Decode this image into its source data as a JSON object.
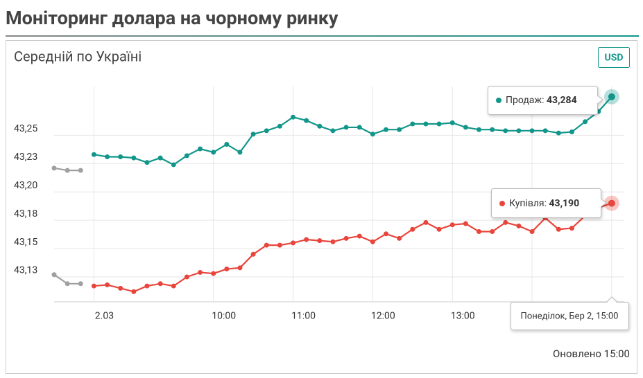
{
  "header": {
    "title": "Моніторинг долара на чорному ринку"
  },
  "card": {
    "subtitle": "Середній по Україні",
    "currency_button": "USD",
    "footer": "Оновлено 15:00"
  },
  "chart_data": {
    "type": "line",
    "categories": [
      null,
      null,
      null,
      "2.03",
      null,
      null,
      null,
      null,
      null,
      null,
      null,
      null,
      "10:00",
      null,
      null,
      null,
      null,
      null,
      "11:00",
      null,
      null,
      null,
      null,
      null,
      "12:00",
      null,
      null,
      null,
      null,
      null,
      "13:00",
      null,
      null,
      null,
      null,
      null,
      null,
      null,
      null,
      null,
      null,
      null,
      null
    ],
    "ylim": [
      43.103,
      43.293
    ],
    "yticks": [
      {
        "value": 43.125,
        "label": "43,13"
      },
      {
        "value": 43.15,
        "label": "43,15"
      },
      {
        "value": 43.175,
        "label": "43,18"
      },
      {
        "value": 43.2,
        "label": "43,20"
      },
      {
        "value": 43.225,
        "label": "43,23"
      },
      {
        "value": 43.25,
        "label": "43,25"
      }
    ],
    "grid": true,
    "series": [
      {
        "name": "Продаж:",
        "color": "#12968a",
        "tooltip_value": "43,284",
        "values": [
          null,
          null,
          null,
          43.233,
          43.231,
          43.231,
          43.23,
          43.226,
          43.23,
          43.224,
          43.232,
          43.238,
          43.235,
          43.242,
          43.235,
          43.251,
          43.254,
          43.258,
          43.266,
          43.263,
          43.258,
          43.254,
          43.257,
          43.257,
          43.251,
          43.255,
          43.255,
          43.26,
          43.26,
          43.26,
          43.261,
          43.257,
          43.255,
          43.255,
          43.254,
          43.254,
          43.254,
          43.254,
          43.252,
          43.253,
          43.262,
          43.271,
          43.284
        ]
      },
      {
        "name": "Купівля:",
        "color": "#e8453c",
        "tooltip_value": "43,190",
        "values": [
          null,
          null,
          null,
          43.117,
          43.118,
          43.115,
          43.112,
          43.117,
          43.119,
          43.117,
          43.125,
          43.129,
          43.128,
          43.132,
          43.133,
          43.145,
          43.153,
          43.153,
          43.155,
          43.158,
          43.157,
          43.156,
          43.159,
          43.161,
          43.156,
          43.163,
          43.159,
          43.167,
          43.173,
          43.167,
          43.171,
          43.172,
          43.165,
          43.165,
          43.173,
          43.17,
          43.165,
          43.177,
          43.167,
          43.168,
          43.179,
          43.186,
          43.19
        ]
      },
      {
        "color": "#a0a0a0",
        "values": [
          43.221,
          43.219,
          43.219,
          null,
          null,
          null,
          null,
          null,
          null,
          null,
          null,
          null,
          null,
          null,
          null,
          null,
          null,
          null,
          null,
          null,
          null,
          null,
          null,
          null,
          null,
          null,
          null,
          null,
          null,
          null,
          null,
          null,
          null,
          null,
          null,
          null,
          null,
          null,
          null,
          null,
          null,
          null,
          null
        ]
      },
      {
        "color": "#a0a0a0",
        "values": [
          43.127,
          43.119,
          43.119,
          null,
          null,
          null,
          null,
          null,
          null,
          null,
          null,
          null,
          null,
          null,
          null,
          null,
          null,
          null,
          null,
          null,
          null,
          null,
          null,
          null,
          null,
          null,
          null,
          null,
          null,
          null,
          null,
          null,
          null,
          null,
          null,
          null,
          null,
          null,
          null,
          null,
          null,
          null,
          null
        ]
      }
    ],
    "tooltip_date": "Понеділок, Бер 2, 15:00"
  }
}
